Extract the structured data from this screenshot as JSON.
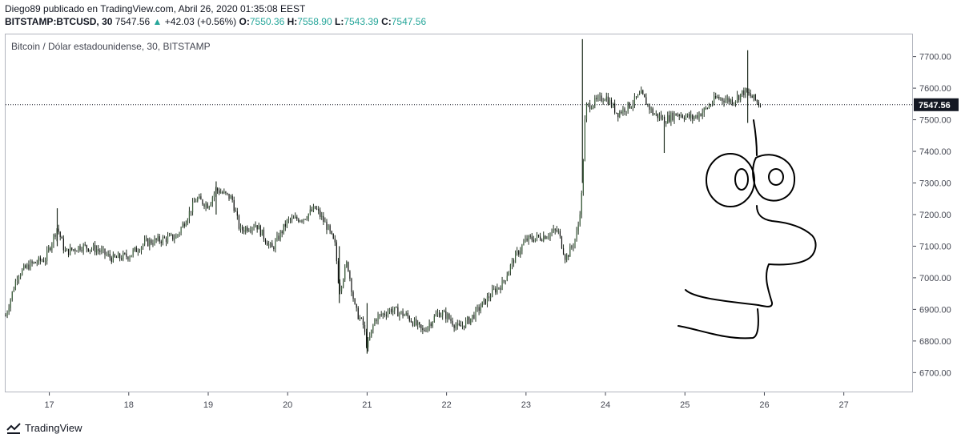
{
  "header": {
    "publisher_line": "Diego89 publicado en TradingView.com, Abril 26, 2020 01:35:08 EEST",
    "symbol": "BITSTAMP:BTCUSD, 30",
    "last": "7547.56",
    "change_arrow": "▲",
    "change": "+42.03 (+0.56%)",
    "o_label": "O:",
    "o": "7550.36",
    "h_label": "H:",
    "h": "7558.90",
    "l_label": "L:",
    "l": "7543.39",
    "c_label": "C:",
    "c": "7547.56"
  },
  "pane_title": "Bitcoin / Dólar estadounidense, 30, BITSTAMP",
  "footer": {
    "brand": "TradingView"
  },
  "colors": {
    "up": "#26a69a",
    "candle": "#1f2d1f",
    "text": "#131722",
    "axis_text": "#434651",
    "pen": "#000000"
  },
  "chart_data": {
    "type": "candlestick",
    "title": "Bitcoin / Dólar estadounidense, 30, BITSTAMP",
    "ylim": [
      6640,
      7770
    ],
    "yticks": [
      "6700.00",
      "6800.00",
      "6900.00",
      "7000.00",
      "7100.00",
      "7200.00",
      "7300.00",
      "7400.00",
      "7500.00",
      "7600.00",
      "7700.00"
    ],
    "ytick_values": [
      6700,
      6800,
      6900,
      7000,
      7100,
      7200,
      7300,
      7400,
      7500,
      7600,
      7700
    ],
    "xticks": [
      "17",
      "18",
      "19",
      "20",
      "21",
      "22",
      "23",
      "24",
      "25",
      "26",
      "27"
    ],
    "xlim_days": [
      16.45,
      27.85
    ],
    "last_price": 7547.56,
    "last_price_label": "7547.56",
    "price_path": [
      [
        16.45,
        6880
      ],
      [
        16.6,
        7010
      ],
      [
        16.75,
        7040
      ],
      [
        16.95,
        7060
      ],
      [
        17.1,
        7160
      ],
      [
        17.2,
        7080
      ],
      [
        17.4,
        7100
      ],
      [
        17.6,
        7090
      ],
      [
        17.8,
        7060
      ],
      [
        18.0,
        7070
      ],
      [
        18.2,
        7110
      ],
      [
        18.4,
        7120
      ],
      [
        18.6,
        7130
      ],
      [
        18.75,
        7200
      ],
      [
        18.85,
        7250
      ],
      [
        19.0,
        7230
      ],
      [
        19.1,
        7280
      ],
      [
        19.3,
        7250
      ],
      [
        19.4,
        7150
      ],
      [
        19.6,
        7170
      ],
      [
        19.8,
        7090
      ],
      [
        20.0,
        7180
      ],
      [
        20.2,
        7190
      ],
      [
        20.35,
        7220
      ],
      [
        20.5,
        7160
      ],
      [
        20.6,
        7100
      ],
      [
        20.65,
        6960
      ],
      [
        20.75,
        7050
      ],
      [
        20.85,
        6900
      ],
      [
        20.95,
        6850
      ],
      [
        21.0,
        6780
      ],
      [
        21.1,
        6870
      ],
      [
        21.3,
        6900
      ],
      [
        21.5,
        6880
      ],
      [
        21.7,
        6830
      ],
      [
        21.9,
        6890
      ],
      [
        22.0,
        6880
      ],
      [
        22.15,
        6840
      ],
      [
        22.3,
        6870
      ],
      [
        22.5,
        6930
      ],
      [
        22.6,
        6960
      ],
      [
        22.7,
        6980
      ],
      [
        22.85,
        7060
      ],
      [
        23.0,
        7120
      ],
      [
        23.2,
        7130
      ],
      [
        23.4,
        7150
      ],
      [
        23.5,
        7060
      ],
      [
        23.6,
        7110
      ],
      [
        23.65,
        7150
      ],
      [
        23.7,
        7260
      ],
      [
        23.75,
        7540
      ],
      [
        23.9,
        7560
      ],
      [
        24.0,
        7575
      ],
      [
        24.15,
        7520
      ],
      [
        24.3,
        7545
      ],
      [
        24.45,
        7580
      ],
      [
        24.6,
        7520
      ],
      [
        24.75,
        7500
      ],
      [
        24.9,
        7520
      ],
      [
        25.1,
        7505
      ],
      [
        25.25,
        7530
      ],
      [
        25.4,
        7570
      ],
      [
        25.6,
        7560
      ],
      [
        25.75,
        7590
      ],
      [
        25.85,
        7570
      ],
      [
        25.95,
        7547
      ]
    ],
    "spikes": [
      {
        "day": 23.71,
        "high": 7755,
        "low": 7300
      },
      {
        "day": 25.79,
        "high": 7720,
        "low": 7490
      },
      {
        "day": 24.74,
        "high": 7495,
        "low": 7395
      },
      {
        "day": 21.0,
        "high": 6920,
        "low": 6760
      },
      {
        "day": 20.65,
        "high": 7100,
        "low": 6920
      },
      {
        "day": 19.1,
        "high": 7305,
        "low": 7200
      },
      {
        "day": 17.1,
        "high": 7220,
        "low": 7100
      }
    ]
  }
}
